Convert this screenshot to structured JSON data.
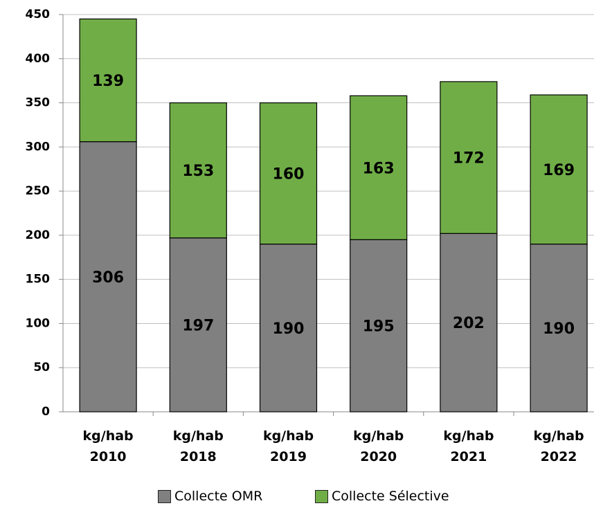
{
  "chart_data": {
    "type": "stacked_bar",
    "categories": [
      "kg/hab\n2010",
      "kg/hab\n2018",
      "kg/hab\n2019",
      "kg/hab\n2020",
      "kg/hab\n2021",
      "kg/hab\n2022"
    ],
    "series": [
      {
        "name": "Collecte OMR",
        "color": "#808080",
        "values": [
          306,
          197,
          190,
          195,
          202,
          190
        ]
      },
      {
        "name": "Collecte Sélective",
        "color": "#70ad47",
        "values": [
          139,
          153,
          160,
          163,
          172,
          169
        ]
      }
    ],
    "ylim": [
      0,
      450
    ],
    "yticks": [
      0,
      50,
      100,
      150,
      200,
      250,
      300,
      350,
      400,
      450
    ],
    "grid": true,
    "legend": "bottom"
  }
}
